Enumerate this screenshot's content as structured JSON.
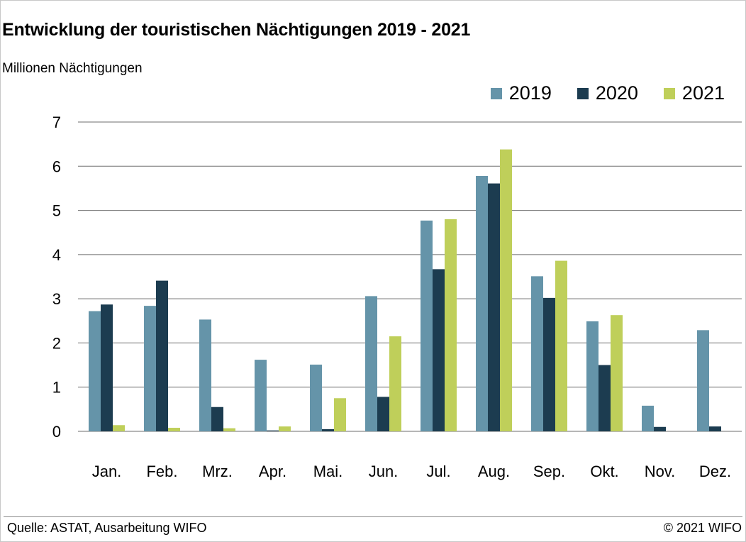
{
  "title": "Entwicklung der touristischen Nächtigungen 2019 - 2021",
  "unit_label": "Millionen Nächtigungen",
  "footer": {
    "source": "Quelle: ASTAT, Ausarbeitung WIFO",
    "copyright": "© 2021 WIFO"
  },
  "colors": {
    "2019": "#6594a9",
    "2020": "#1c3c50",
    "2021": "#bfcf5a",
    "grid": "#6e6e6e"
  },
  "chart_data": {
    "type": "bar",
    "title": "Entwicklung der touristischen Nächtigungen 2019 - 2021",
    "ylabel": "Millionen Nächtigungen",
    "xlabel": "",
    "ylim": [
      0,
      7
    ],
    "yticks": [
      0,
      1,
      2,
      3,
      4,
      5,
      6,
      7
    ],
    "grid": true,
    "legend_position": "top-right",
    "categories": [
      "Jan.",
      "Feb.",
      "Mrz.",
      "Apr.",
      "Mai.",
      "Jun.",
      "Jul.",
      "Aug.",
      "Sep.",
      "Okt.",
      "Nov.",
      "Dez."
    ],
    "series": [
      {
        "name": "2019",
        "values": [
          2.72,
          2.84,
          2.53,
          1.62,
          1.51,
          3.06,
          4.77,
          5.78,
          3.51,
          2.49,
          0.58,
          2.29
        ]
      },
      {
        "name": "2020",
        "values": [
          2.87,
          3.41,
          0.55,
          0.02,
          0.05,
          0.78,
          3.67,
          5.61,
          3.02,
          1.5,
          0.1,
          0.11
        ]
      },
      {
        "name": "2021",
        "values": [
          0.14,
          0.08,
          0.07,
          0.11,
          0.75,
          2.15,
          4.8,
          6.38,
          3.86,
          2.63,
          null,
          null
        ]
      }
    ]
  }
}
